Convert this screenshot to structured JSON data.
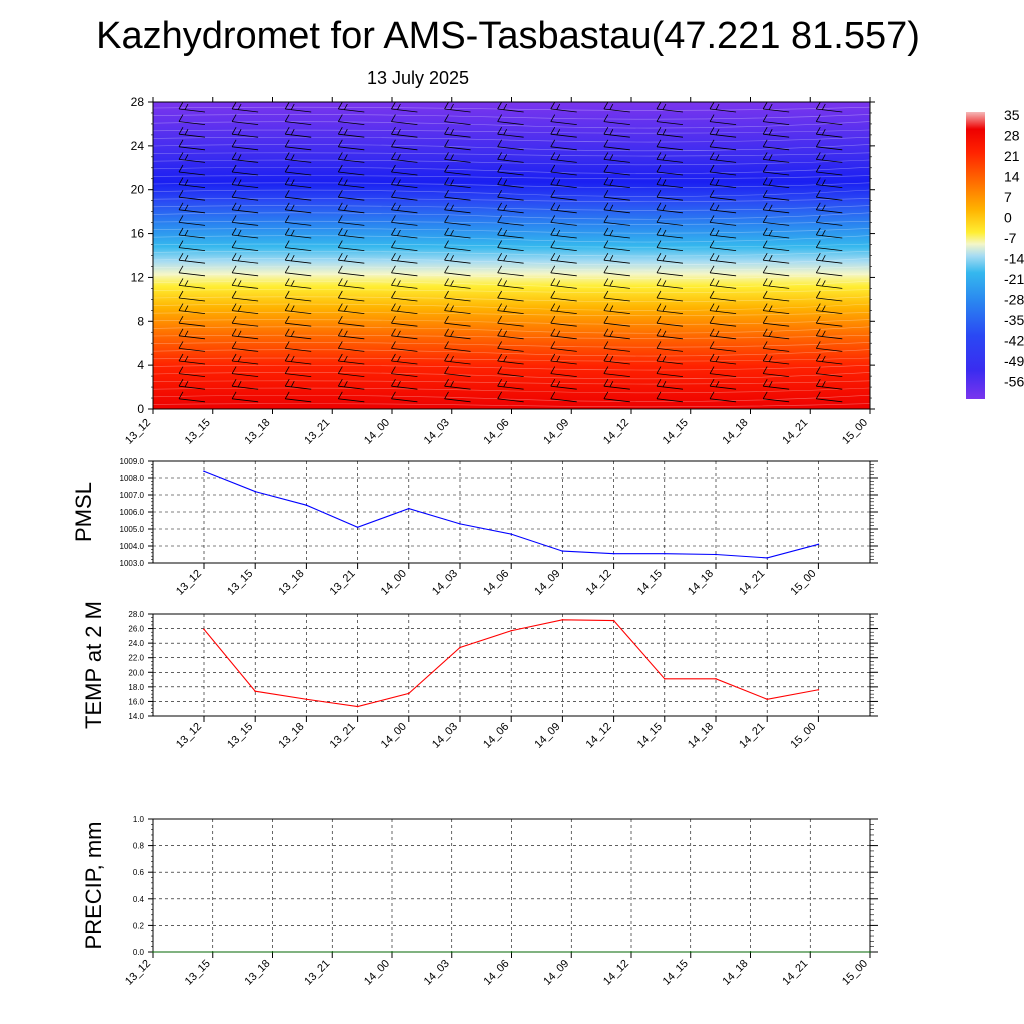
{
  "header": {
    "title": "Kazhydromet for AMS-Tasbastau(47.221 81.557)",
    "subtitle": "13 July 2025"
  },
  "colorbar": {
    "labels": [
      "35",
      "28",
      "21",
      "14",
      "7",
      "0",
      "-7",
      "-14",
      "-21",
      "-28",
      "-35",
      "-42",
      "-49",
      "-56"
    ]
  },
  "chart_data": [
    {
      "type": "heatmap",
      "name": "temperature-wind-profile",
      "x_categories": [
        "13_12",
        "13_15",
        "13_18",
        "13_21",
        "14_00",
        "14_03",
        "14_06",
        "14_09",
        "14_12",
        "14_15",
        "14_18",
        "14_21",
        "15_00"
      ],
      "y_ticks": [
        0,
        4,
        8,
        12,
        16,
        20,
        24,
        28
      ],
      "ylim": [
        0,
        28
      ],
      "color_scale": [
        -56,
        35
      ],
      "freezing_level_approx": 12.5,
      "overlay": "wind barbs"
    },
    {
      "type": "line",
      "name": "pmsl",
      "ylabel": "PMSL",
      "x_categories": [
        "13_12",
        "13_15",
        "13_18",
        "13_21",
        "14_00",
        "14_03",
        "14_06",
        "14_09",
        "14_12",
        "14_15",
        "14_18",
        "14_21",
        "15_00"
      ],
      "values": [
        1008.4,
        1007.2,
        1006.4,
        1005.1,
        1006.2,
        1005.3,
        1004.7,
        1003.7,
        1003.55,
        1003.55,
        1003.5,
        1003.3,
        1004.1
      ],
      "ylim": [
        1003.0,
        1009.0
      ],
      "y_ticks": [
        "1003.0",
        "1004.0",
        "1005.0",
        "1006.0",
        "1007.0",
        "1008.0",
        "1009.0"
      ],
      "color": "#0000ff",
      "grid": true
    },
    {
      "type": "line",
      "name": "temp-2m",
      "ylabel": "TEMP at 2 M",
      "x_categories": [
        "13_12",
        "13_15",
        "13_18",
        "13_21",
        "14_00",
        "14_03",
        "14_06",
        "14_09",
        "14_12",
        "14_15",
        "14_18",
        "14_21",
        "15_00"
      ],
      "values": [
        25.9,
        17.4,
        16.3,
        15.3,
        17.1,
        23.4,
        25.7,
        27.2,
        27.1,
        19.1,
        19.1,
        16.3,
        17.6
      ],
      "ylim": [
        14.0,
        28.0
      ],
      "y_ticks": [
        "14.0",
        "16.0",
        "18.0",
        "20.0",
        "22.0",
        "24.0",
        "26.0",
        "28.0"
      ],
      "color": "#ff0000",
      "grid": true
    },
    {
      "type": "line",
      "name": "precip",
      "ylabel": "PRECIP, mm",
      "x_categories": [
        "13_12",
        "13_15",
        "13_18",
        "13_21",
        "14_00",
        "14_03",
        "14_06",
        "14_09",
        "14_12",
        "14_15",
        "14_18",
        "14_21",
        "15_00"
      ],
      "values": [
        0,
        0,
        0,
        0,
        0,
        0,
        0,
        0,
        0,
        0,
        0,
        0,
        0
      ],
      "ylim": [
        0.0,
        1.0
      ],
      "y_ticks": [
        "0.0",
        "0.2",
        "0.4",
        "0.6",
        "0.8",
        "1.0"
      ],
      "color": "#006400",
      "grid": true
    }
  ]
}
